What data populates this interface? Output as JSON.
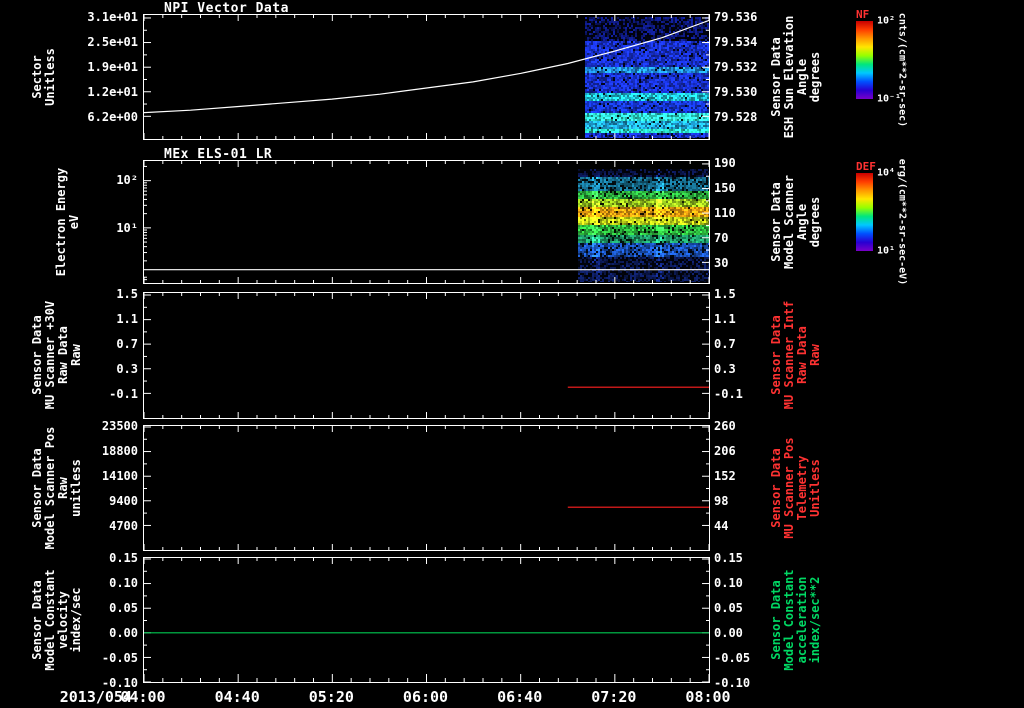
{
  "date_label": "2013/054",
  "colors": {
    "bg": "#000000",
    "fg": "#ffffff",
    "red": "#ff3232",
    "green": "#00d964"
  },
  "time_axis": {
    "start_hour": 4,
    "end_hour": 8,
    "ticks": [
      "04:00",
      "04:40",
      "05:20",
      "06:00",
      "06:40",
      "07:20",
      "08:00"
    ]
  },
  "colorbars": [
    {
      "name": "NF",
      "units": "cnts/(cm**2-sr-sec)",
      "ticks": [
        {
          "label": "10²",
          "f": 0.0
        },
        {
          "label": "10⁻¹",
          "f": 1.0
        }
      ],
      "gradient": [
        "#c80000",
        "#ff3c00",
        "#ff9600",
        "#ffe600",
        "#96ff00",
        "#00e67d",
        "#00c8ff",
        "#0050ff",
        "#2800d2",
        "#7800c8"
      ]
    },
    {
      "name": "DEF",
      "units": "erg/(cm**2-sr-sec-eV)",
      "ticks": [
        {
          "label": "10⁴",
          "f": 0.0
        },
        {
          "label": "10¹",
          "f": 1.0
        }
      ],
      "gradient": [
        "#c80000",
        "#ff3c00",
        "#ff9600",
        "#ffe600",
        "#96ff00",
        "#00e67d",
        "#00c8ff",
        "#0050ff",
        "#2800d2",
        "#7800c8"
      ]
    }
  ],
  "chart_data": [
    {
      "type": "line+spectrogram",
      "title": "NPI Vector Data",
      "left_label_lines": [
        "Sector",
        "Unitless"
      ],
      "right_label_lines": [
        "Sensor Data",
        "ESH Sun Elevation",
        "Angle",
        "degrees"
      ],
      "left_axis": {
        "log": false,
        "ticks": [
          {
            "label": "3.1e+01",
            "value": 31,
            "f": 0.024
          },
          {
            "label": "2.5e+01",
            "value": 25,
            "f": 0.222
          },
          {
            "label": "1.9e+01",
            "value": 19,
            "f": 0.421
          },
          {
            "label": "1.2e+01",
            "value": 12,
            "f": 0.619
          },
          {
            "label": "6.2e+00",
            "value": 6.2,
            "f": 0.817
          }
        ]
      },
      "right_axis": {
        "log": false,
        "ticks": [
          {
            "label": "79.536",
            "value": 79.536,
            "f": 0.024
          },
          {
            "label": "79.534",
            "value": 79.534,
            "f": 0.222
          },
          {
            "label": "79.532",
            "value": 79.532,
            "f": 0.421
          },
          {
            "label": "79.530",
            "value": 79.53,
            "f": 0.619
          },
          {
            "label": "79.528",
            "value": 79.528,
            "f": 0.817
          }
        ]
      },
      "series": [
        {
          "name": "esh-sun-elevation-angle",
          "axis": "right",
          "color": "#ffffff",
          "x_hours": [
            4,
            4.33,
            4.67,
            5,
            5.33,
            5.67,
            6,
            6.33,
            6.67,
            7,
            7.33,
            7.67,
            8
          ],
          "values": [
            79.5283,
            79.5285,
            79.5288,
            79.5291,
            79.5294,
            79.5298,
            79.5303,
            79.5308,
            79.5315,
            79.5323,
            79.5333,
            79.5344,
            79.5358
          ]
        }
      ],
      "spectrogram": {
        "t0": 7.12,
        "t1": 8.0,
        "f_top": 0.016,
        "f_bottom": 0.992,
        "streaks": [],
        "bands": [
          {
            "f0": 0.0,
            "f1": 0.2,
            "color": "#0d1878",
            "dark": 0.45
          },
          {
            "f0": 0.2,
            "f1": 0.41,
            "color": "#1830cc",
            "dark": 0.08
          },
          {
            "f0": 0.41,
            "f1": 0.46,
            "color": "#2090e8",
            "dark": 0.05
          },
          {
            "f0": 0.46,
            "f1": 0.63,
            "color": "#1830cc",
            "dark": 0.08
          },
          {
            "f0": 0.63,
            "f1": 0.7,
            "color": "#20c8e0",
            "dark": 0.03
          },
          {
            "f0": 0.7,
            "f1": 0.79,
            "color": "#1636d4",
            "dark": 0.06
          },
          {
            "f0": 0.79,
            "f1": 0.86,
            "color": "#30e8d8",
            "dark": 0.02
          },
          {
            "f0": 0.86,
            "f1": 0.92,
            "color": "#20a8e0",
            "dark": 0.04
          },
          {
            "f0": 0.92,
            "f1": 0.965,
            "color": "#28d8c0",
            "dark": 0.03
          },
          {
            "f0": 0.965,
            "f1": 1.0,
            "color": "#1830cc",
            "dark": 0.1
          }
        ]
      }
    },
    {
      "type": "spectrogram",
      "title": "MEx ELS-01 LR",
      "left_label_lines": [
        "Electron Energy",
        "eV"
      ],
      "right_label_lines": [
        "Sensor Data",
        "Model Scanner",
        "Angle",
        "degrees"
      ],
      "left_axis": {
        "log": true,
        "ticks": [
          {
            "label": "10²",
            "value": 100,
            "f": 0.161
          },
          {
            "label": "10¹",
            "value": 10,
            "f": 0.548
          }
        ]
      },
      "right_axis": {
        "log": false,
        "ticks": [
          {
            "label": "190",
            "value": 190,
            "f": 0.024
          },
          {
            "label": "150",
            "value": 150,
            "f": 0.226
          },
          {
            "label": "110",
            "value": 110,
            "f": 0.427
          },
          {
            "label": "70",
            "value": 70,
            "f": 0.629
          },
          {
            "label": "30",
            "value": 30,
            "f": 0.831
          }
        ]
      },
      "series": [
        {
          "name": "energy-floor",
          "axis": "left",
          "color": "#ffffff",
          "x_hours": [
            4,
            8
          ],
          "values": [
            1.3,
            1.3
          ]
        }
      ],
      "spectrogram": {
        "t0": 7.07,
        "t1": 8.0,
        "f_top": 0.065,
        "f_bottom": 0.992,
        "streaks": [
          0.13,
          0.62
        ],
        "bands": [
          {
            "f0": 0.0,
            "f1": 0.07,
            "color": "#0a1448",
            "dark": 0.5
          },
          {
            "f0": 0.07,
            "f1": 0.19,
            "color": "#166a8a",
            "dark": 0.25
          },
          {
            "f0": 0.19,
            "f1": 0.27,
            "color": "#2aa83c",
            "dark": 0.1
          },
          {
            "f0": 0.27,
            "f1": 0.34,
            "color": "#96c41e",
            "dark": 0.06
          },
          {
            "f0": 0.34,
            "f1": 0.43,
            "color": "#e89c10",
            "dark": 0.05
          },
          {
            "f0": 0.43,
            "f1": 0.5,
            "color": "#b4c818",
            "dark": 0.06
          },
          {
            "f0": 0.5,
            "f1": 0.585,
            "color": "#2cb23c",
            "dark": 0.08
          },
          {
            "f0": 0.585,
            "f1": 0.655,
            "color": "#1e9464",
            "dark": 0.12
          },
          {
            "f0": 0.655,
            "f1": 0.77,
            "color": "#1a50b4",
            "dark": 0.2
          },
          {
            "f0": 0.77,
            "f1": 1.0,
            "color": "#0c1a55",
            "dark": 0.45
          }
        ]
      }
    },
    {
      "type": "line",
      "title": "",
      "left_label_lines": [
        "Sensor Data",
        "MU Scanner +30V",
        "Raw Data",
        "Raw"
      ],
      "right_label_lines": [
        "Sensor Data",
        "MU Scanner Intf",
        "Raw Data",
        "Raw"
      ],
      "left_axis": {
        "log": false,
        "ticks": [
          {
            "label": "1.5",
            "value": 1.5,
            "f": 0.016
          },
          {
            "label": "1.1",
            "value": 1.1,
            "f": 0.213
          },
          {
            "label": "0.7",
            "value": 0.7,
            "f": 0.409
          },
          {
            "label": "0.3",
            "value": 0.3,
            "f": 0.606
          },
          {
            "label": "-0.1",
            "value": -0.1,
            "f": 0.803
          }
        ]
      },
      "right_axis": {
        "log": false,
        "ticks": [
          {
            "label": "1.5",
            "value": 1.5,
            "f": 0.016
          },
          {
            "label": "1.1",
            "value": 1.1,
            "f": 0.213
          },
          {
            "label": "0.7",
            "value": 0.7,
            "f": 0.409
          },
          {
            "label": "0.3",
            "value": 0.3,
            "f": 0.606
          },
          {
            "label": "-0.1",
            "value": -0.1,
            "f": 0.803
          }
        ]
      },
      "series": [
        {
          "name": "mu-scanner-30v",
          "axis": "left",
          "color": "#ff2020",
          "x_hours": [
            7.0,
            8.0
          ],
          "values": [
            0.0,
            0.0
          ]
        }
      ]
    },
    {
      "type": "line",
      "title": "",
      "left_label_lines": [
        "Sensor Data",
        "Model Scanner Pos",
        "Raw",
        "unitless"
      ],
      "right_label_lines": [
        "Sensor Data",
        "MU Scanner Pos",
        "Telemetry",
        "Unitless"
      ],
      "left_axis": {
        "log": false,
        "ticks": [
          {
            "label": "23500",
            "value": 23500,
            "f": 0.008
          },
          {
            "label": "18800",
            "value": 18800,
            "f": 0.206
          },
          {
            "label": "14100",
            "value": 14100,
            "f": 0.405
          },
          {
            "label": "9400",
            "value": 9400,
            "f": 0.603
          },
          {
            "label": "4700",
            "value": 4700,
            "f": 0.802
          }
        ]
      },
      "right_axis": {
        "log": false,
        "ticks": [
          {
            "label": "260",
            "value": 260,
            "f": 0.008
          },
          {
            "label": "206",
            "value": 206,
            "f": 0.206
          },
          {
            "label": "152",
            "value": 152,
            "f": 0.405
          },
          {
            "label": "98",
            "value": 98,
            "f": 0.603
          },
          {
            "label": "44",
            "value": 44,
            "f": 0.802
          }
        ]
      },
      "series": [
        {
          "name": "model-scanner-pos",
          "axis": "left",
          "color": "#ff2020",
          "x_hours": [
            7.0,
            8.0
          ],
          "values": [
            8192,
            8192
          ]
        }
      ]
    },
    {
      "type": "line",
      "title": "",
      "left_label_lines": [
        "Sensor Data",
        "Model Constant",
        "velocity",
        "index/sec"
      ],
      "right_label_lines": [
        "Sensor Data",
        "Model Constant",
        "acceleration",
        "index/sec**2"
      ],
      "left_axis": {
        "log": false,
        "ticks": [
          {
            "label": "0.15",
            "value": 0.15,
            "f": 0.008
          },
          {
            "label": "0.10",
            "value": 0.1,
            "f": 0.206
          },
          {
            "label": "0.05",
            "value": 0.05,
            "f": 0.405
          },
          {
            "label": "0.00",
            "value": 0.0,
            "f": 0.603
          },
          {
            "label": "-0.05",
            "value": -0.05,
            "f": 0.802
          },
          {
            "label": "-0.10",
            "value": -0.1,
            "f": 1.0
          }
        ]
      },
      "right_axis": {
        "log": false,
        "ticks": [
          {
            "label": "0.15",
            "value": 0.15,
            "f": 0.008
          },
          {
            "label": "0.10",
            "value": 0.1,
            "f": 0.206
          },
          {
            "label": "0.05",
            "value": 0.05,
            "f": 0.405
          },
          {
            "label": "0.00",
            "value": 0.0,
            "f": 0.603
          },
          {
            "label": "-0.05",
            "value": -0.05,
            "f": 0.802
          },
          {
            "label": "-0.10",
            "value": -0.1,
            "f": 1.0
          }
        ]
      },
      "series": [
        {
          "name": "model-constant-velocity",
          "axis": "left",
          "color": "#00c850",
          "x_hours": [
            4.0,
            8.0
          ],
          "values": [
            0.0,
            0.0
          ]
        }
      ]
    }
  ]
}
